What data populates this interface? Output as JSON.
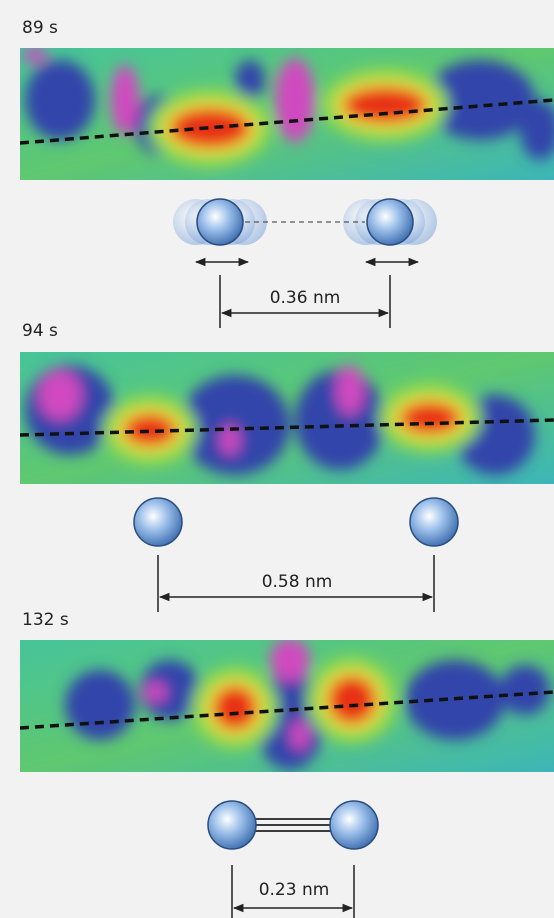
{
  "panels": [
    {
      "time": "89 s",
      "distance": "0.36 nm"
    },
    {
      "time": "94 s",
      "distance": "0.58 nm"
    },
    {
      "time": "132 s",
      "distance": "0.23 nm"
    }
  ]
}
